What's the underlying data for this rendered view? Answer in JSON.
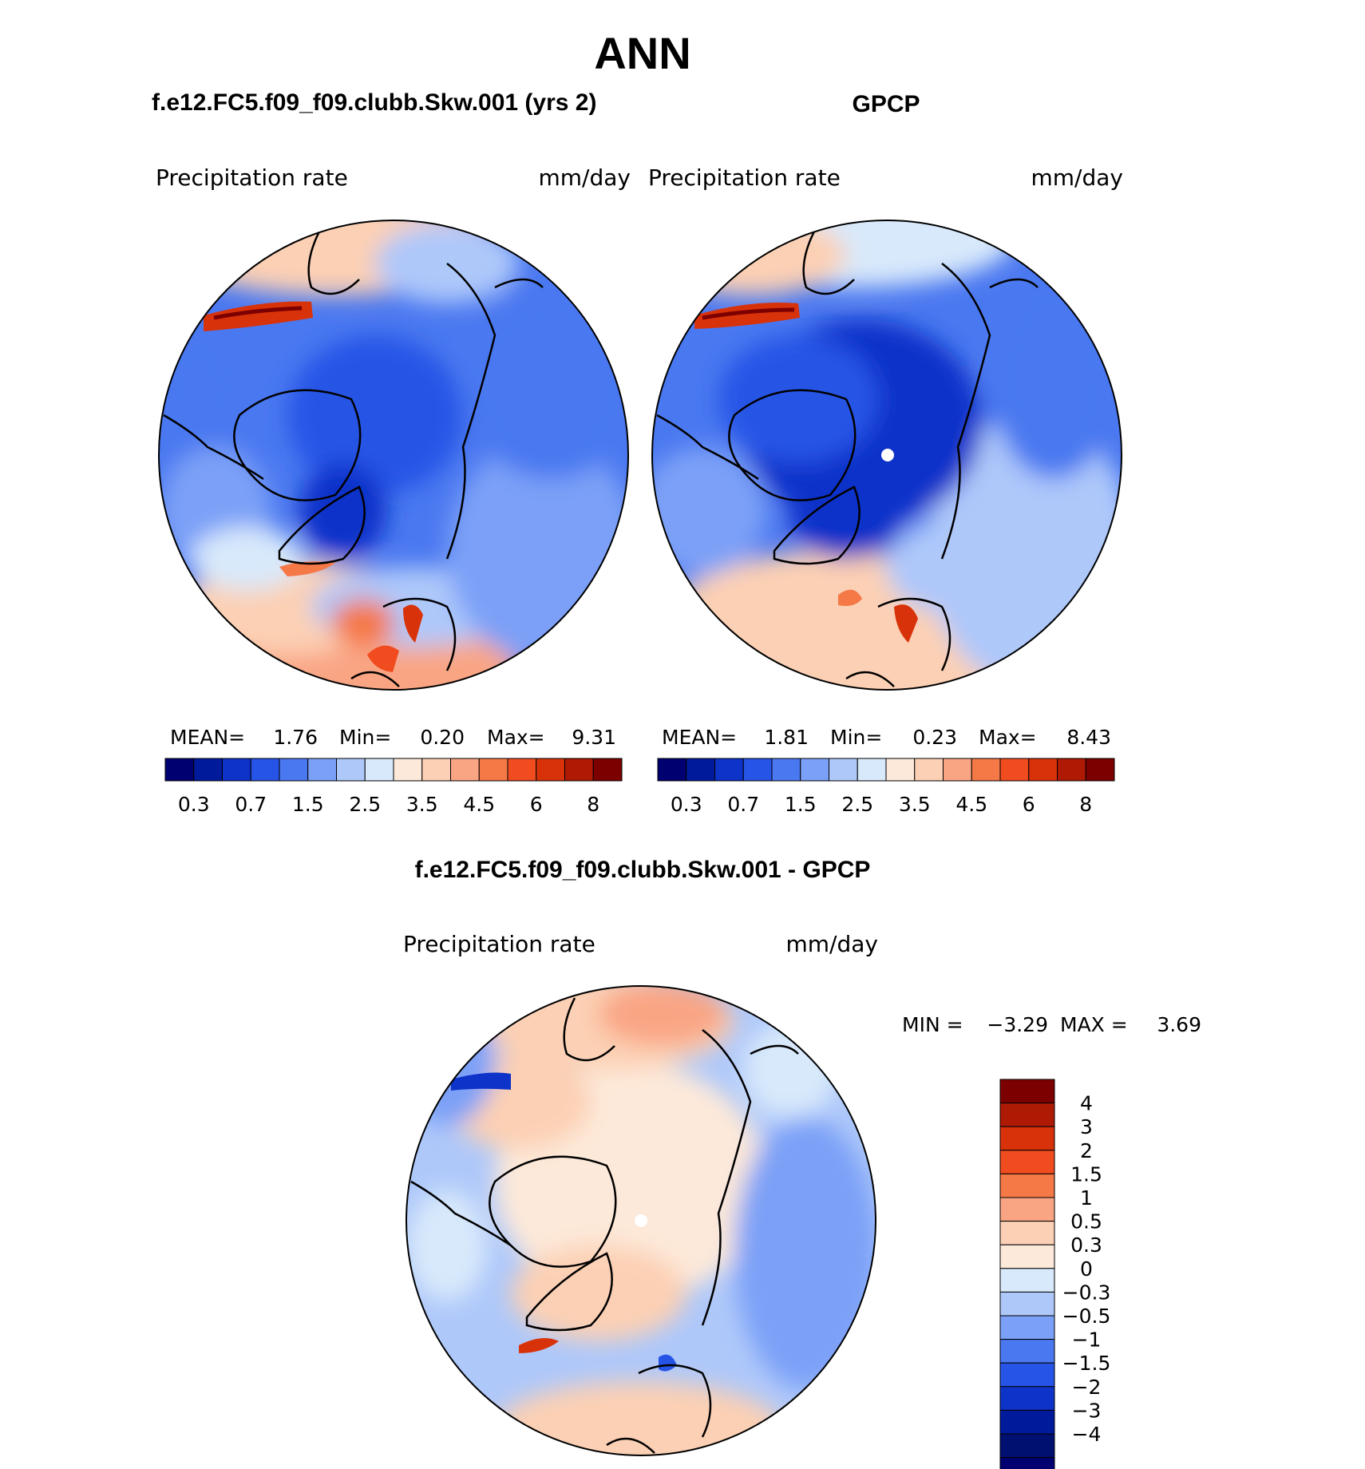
{
  "chart_data": {
    "type": "heatmap",
    "title": "ANN",
    "panels": [
      {
        "id": "model",
        "subtitle": "f.e12.FC5.f09_f09.clubb.Skw.001 (yrs 2)",
        "left_label": "Precipitation  rate",
        "right_label": "mm/day",
        "stats": {
          "mean_label": "MEAN=",
          "mean": "1.76",
          "min_label": "Min=",
          "min": "0.20",
          "max_label": "Max=",
          "max": "9.31"
        },
        "colorbar_ticks": [
          "0.3",
          "0.7",
          "1.5",
          "2.5",
          "3.5",
          "4.5",
          "6",
          "8"
        ]
      },
      {
        "id": "obs",
        "subtitle": "GPCP",
        "left_label": "Precipitation  rate",
        "right_label": "mm/day",
        "stats": {
          "mean_label": "MEAN=",
          "mean": "1.81",
          "min_label": "Min=",
          "min": "0.23",
          "max_label": "Max=",
          "max": "8.43"
        },
        "colorbar_ticks": [
          "0.3",
          "0.7",
          "1.5",
          "2.5",
          "3.5",
          "4.5",
          "6",
          "8"
        ]
      },
      {
        "id": "diff",
        "subtitle": "f.e12.FC5.f09_f09.clubb.Skw.001 - GPCP",
        "left_label": "Precipitation  rate",
        "right_label": "mm/day",
        "stats": {
          "min_label": "MIN =",
          "min": "−3.29",
          "max_label": "MAX =",
          "max": "3.69"
        },
        "colorbar_ticks": [
          "4",
          "3",
          "2",
          "1.5",
          "1",
          "0.5",
          "0.3",
          "0",
          "−0.3",
          "−0.5",
          "−1",
          "−1.5",
          "−2",
          "−3",
          "−4"
        ]
      }
    ],
    "colormap": [
      "#000070",
      "#001a9c",
      "#0d33c9",
      "#2654e6",
      "#4a78f0",
      "#7ba0f7",
      "#aec8fa",
      "#d8e9fb",
      "#fde9d9",
      "#fcd0b4",
      "#f9a584",
      "#f57847",
      "#f04c1f",
      "#d8320a",
      "#ae1a04",
      "#7d0000"
    ],
    "projection": "north polar stereographic"
  }
}
